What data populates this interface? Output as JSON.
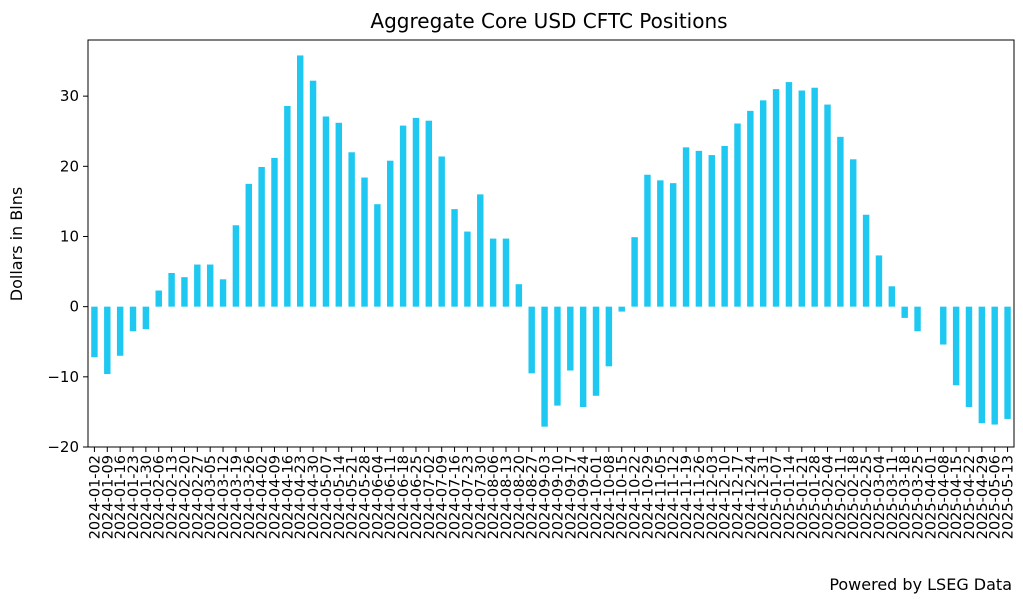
{
  "chart_data": {
    "type": "bar",
    "title": "Aggregate Core USD CFTC Positions",
    "xlabel": "",
    "ylabel": "Dollars in Blns",
    "ylim": [
      -20,
      38
    ],
    "yticks": [
      -20,
      -10,
      0,
      10,
      20,
      30
    ],
    "grid": false,
    "bar_color": "#1EC8F0",
    "footer": "Powered by LSEG Data",
    "categories": [
      "2024-01-02",
      "2024-01-09",
      "2024-01-16",
      "2024-01-23",
      "2024-01-30",
      "2024-02-06",
      "2024-02-13",
      "2024-02-20",
      "2024-02-27",
      "2024-03-05",
      "2024-03-12",
      "2024-03-19",
      "2024-03-26",
      "2024-04-02",
      "2024-04-09",
      "2024-04-16",
      "2024-04-23",
      "2024-04-30",
      "2024-05-07",
      "2024-05-14",
      "2024-05-21",
      "2024-05-28",
      "2024-06-04",
      "2024-06-11",
      "2024-06-18",
      "2024-06-25",
      "2024-07-02",
      "2024-07-09",
      "2024-07-16",
      "2024-07-23",
      "2024-07-30",
      "2024-08-06",
      "2024-08-13",
      "2024-08-20",
      "2024-08-27",
      "2024-09-03",
      "2024-09-10",
      "2024-09-17",
      "2024-09-24",
      "2024-10-01",
      "2024-10-08",
      "2024-10-15",
      "2024-10-22",
      "2024-10-29",
      "2024-11-05",
      "2024-11-12",
      "2024-11-19",
      "2024-11-26",
      "2024-12-03",
      "2024-12-10",
      "2024-12-17",
      "2024-12-24",
      "2024-12-31",
      "2025-01-07",
      "2025-01-14",
      "2025-01-21",
      "2025-01-28",
      "2025-02-04",
      "2025-02-11",
      "2025-02-18",
      "2025-02-25",
      "2025-03-04",
      "2025-03-11",
      "2025-03-18",
      "2025-03-25",
      "2025-04-01",
      "2025-04-08",
      "2025-04-15",
      "2025-04-22",
      "2025-04-29",
      "2025-05-06",
      "2025-05-13"
    ],
    "xtick_labels": [
      "2024-01-02",
      "2024-01-09",
      "2024-01-16",
      "2024-01-23",
      "2024-01-30",
      "2024-02-06",
      "2024-02-13",
      "2024-02-20",
      "2024-02-27",
      "2024-03-05",
      "2024-03-12",
      "2024-03-19",
      "2024-03-26",
      "2024-04-02",
      "2024-04-09",
      "2024-04-16",
      "2024-04-23",
      "2024-04-30",
      "2024-05-07",
      "2024-05-14",
      "2024-05-21",
      "2024-05-28",
      "2024-06-04",
      "2024-06-11",
      "2024-06-18",
      "2024-06-25",
      "2024-07-02",
      "2024-07-09",
      "2024-07-16",
      "2024-07-23",
      "2024-07-30",
      "2024-08-06",
      "2024-08-13",
      "2024-08-20",
      "2024-08-27",
      "2024-09-03",
      "2024-09-10",
      "2024-09-17",
      "2024-09-24",
      "2024-10-01",
      "2024-10-08",
      "2024-10-15",
      "2024-10-22",
      "2024-10-29",
      "2024-11-05",
      "2024-11-12",
      "2024-11-19",
      "2024-11-26",
      "2024-12-03",
      "2024-12-10",
      "2024-12-17",
      "2024-12-24",
      "2024-12-31",
      "2025-01-07",
      "2025-01-14",
      "2025-01-21",
      "2025-01-28",
      "2025-02-04",
      "2025-02-11",
      "2025-02-18",
      "2025-02-25",
      "2025-03-04",
      "2025-03-11",
      "2025-03-18",
      "2025-03-25",
      "2025-04-01",
      "2025-04-08",
      "2025-04-15",
      "2025-04-22",
      "2025-04-29",
      "2025-05-06",
      "2025-05-13"
    ],
    "values": [
      -7.2,
      -9.6,
      -7.0,
      -3.5,
      -3.2,
      2.3,
      4.8,
      4.2,
      6.0,
      6.0,
      3.9,
      11.6,
      17.5,
      19.9,
      21.2,
      28.6,
      35.8,
      32.2,
      27.1,
      26.2,
      22.0,
      18.4,
      14.6,
      20.8,
      25.8,
      26.9,
      26.5,
      21.4,
      13.9,
      10.7,
      16.0,
      9.7,
      9.7,
      3.2,
      -9.5,
      -17.1,
      -14.1,
      -9.1,
      -14.3,
      -12.7,
      -8.5,
      -0.7,
      9.9,
      18.8,
      18.0,
      17.6,
      22.7,
      22.2,
      21.6,
      22.9,
      26.1,
      27.9,
      29.4,
      31.0,
      32.0,
      30.8,
      31.2,
      28.8,
      24.2,
      21.0,
      13.1,
      7.3,
      2.9,
      -1.6,
      -3.5,
      0.0,
      -5.4,
      -11.2,
      -14.3,
      -16.6,
      -16.8,
      -16.0
    ]
  }
}
